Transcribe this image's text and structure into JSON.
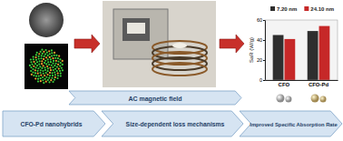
{
  "chart_data": {
    "type": "bar",
    "y_label": "SaR (W/g)",
    "categories": [
      "CFO",
      "CFO-Pd"
    ],
    "series": [
      {
        "name": "7.20 nm",
        "color": "#2e2e2e",
        "values": [
          45,
          49
        ]
      },
      {
        "name": "24.10 nm",
        "color": "#c62828",
        "values": [
          41,
          54
        ]
      }
    ],
    "ylim": [
      0,
      60
    ],
    "yticks": [
      0,
      20,
      40,
      60
    ],
    "legend": "top"
  },
  "diagram": {
    "banner": "AC magnetic field",
    "steps": [
      "CFO-Pd nanohybrids",
      "Size-dependent loss mechanisms",
      "Improved Specific Absorption Rate"
    ]
  }
}
